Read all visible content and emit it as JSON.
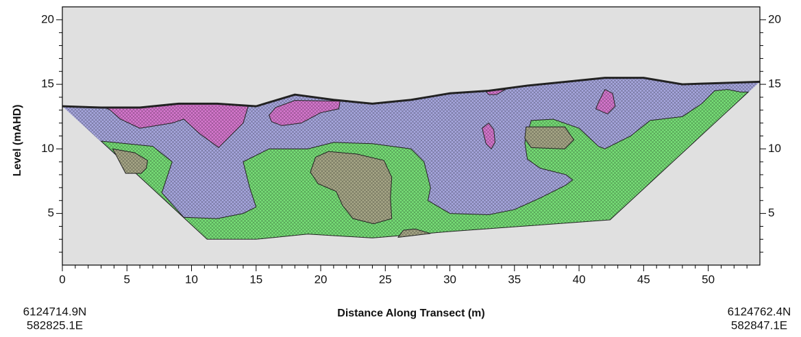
{
  "chart_data": {
    "type": "section",
    "xlabel": "Distance Along Transect (m)",
    "ylabel": "Level (mAHD)",
    "start_label": [
      "6124714.9N",
      "582825.1E"
    ],
    "end_label": [
      "6124762.4N",
      "582847.1E"
    ],
    "xlim": [
      0,
      54
    ],
    "ylim": [
      1,
      21
    ],
    "xticks": [
      0,
      5,
      10,
      15,
      20,
      25,
      30,
      35,
      40,
      45,
      50
    ],
    "yticks": [
      5,
      10,
      15,
      20
    ],
    "xminorticks": [
      1,
      2,
      3,
      4,
      6,
      7,
      8,
      9,
      11,
      12,
      13,
      14,
      16,
      17,
      18,
      19,
      21,
      22,
      23,
      24,
      26,
      27,
      28,
      29,
      31,
      32,
      33,
      34,
      36,
      37,
      38,
      39,
      41,
      42,
      43,
      44,
      46,
      47,
      48,
      49,
      51,
      52,
      53
    ],
    "yminorticks": [
      2,
      3,
      4,
      6,
      7,
      8,
      9,
      11,
      12,
      13,
      14,
      16,
      17,
      18,
      19
    ],
    "background": "#e0e0e0",
    "surface": {
      "color": "#222222",
      "x": [
        0,
        3,
        6,
        9,
        12,
        15,
        18,
        21,
        24,
        27,
        30,
        33,
        36,
        39,
        42,
        45,
        48,
        51,
        54
      ],
      "y": [
        13.3,
        13.2,
        13.2,
        13.5,
        13.5,
        13.3,
        14.2,
        13.8,
        13.5,
        13.8,
        14.3,
        14.5,
        14.9,
        15.2,
        15.5,
        15.5,
        15.0,
        15.1,
        15.2
      ]
    },
    "base": {
      "x": [
        42.4,
        30,
        24,
        19,
        15,
        11.2
      ],
      "y": [
        4.5,
        3.6,
        3.1,
        3.4,
        3.0,
        3.0
      ]
    },
    "section_color": "#a8a8e0",
    "zones": [
      {
        "color": "#78e078",
        "x": [
          3.0,
          11.2,
          15,
          19,
          24,
          30,
          42.4,
          53.1,
          52.5,
          51.5,
          50.5,
          49.5,
          48,
          45.5,
          44,
          42,
          41.5,
          40,
          38,
          36.3,
          35.8,
          36,
          37,
          39,
          39.5,
          39,
          37,
          35,
          33,
          30,
          28.3,
          28.5,
          28,
          27,
          24,
          21,
          19,
          16,
          14,
          14.5,
          15,
          14,
          12,
          9.4,
          7.7,
          8.5,
          7
        ],
        "y": [
          10.6,
          3.0,
          3.0,
          3.4,
          3.1,
          3.6,
          4.5,
          14.4,
          14.4,
          14.6,
          14.5,
          13.5,
          12.5,
          12.2,
          11,
          10,
          10.2,
          11.6,
          12.3,
          12.2,
          10.5,
          9.2,
          8.5,
          8.0,
          7.6,
          7.2,
          6.2,
          5.3,
          4.9,
          5,
          6,
          7,
          9,
          10,
          10.4,
          10.5,
          10,
          10,
          9,
          7,
          5.5,
          5,
          4.6,
          4.7,
          6.6,
          9.0,
          10.2
        ]
      },
      {
        "color": "#a8a888",
        "x": [
          3.9,
          5.6,
          6.6,
          6.5,
          6.1,
          4.9
        ],
        "y": [
          10.0,
          9.7,
          9.1,
          8.5,
          8.1,
          8.1
        ]
      },
      {
        "color": "#a8a888",
        "x": [
          19.6,
          20.6,
          22.8,
          24.9,
          25.5,
          25.4,
          25.5,
          24.1,
          22.5,
          21.7,
          21.2,
          19.8,
          19.2
        ],
        "y": [
          9.35,
          9.8,
          9.6,
          9.1,
          7.8,
          6.2,
          4.6,
          4.2,
          4.6,
          5.6,
          6.7,
          7.3,
          8.2
        ]
      },
      {
        "color": "#a8a888",
        "x": [
          35.9,
          38.9,
          39.6,
          38.9,
          36.3,
          35.8
        ],
        "y": [
          11.7,
          11.7,
          10.7,
          10.0,
          10.1,
          10.8
        ]
      },
      {
        "color": "#a8a888",
        "x": [
          26.0,
          26.4,
          27.3,
          28.5
        ],
        "y": [
          3.15,
          3.7,
          3.8,
          3.45
        ]
      },
      {
        "color": "#d878d0",
        "x": [
          3.3,
          6,
          9,
          12,
          14.4,
          14.0,
          12.9,
          12.1,
          10.6,
          9.4,
          8.5,
          6.0,
          4.5,
          3.7
        ],
        "y": [
          13.2,
          13.2,
          13.5,
          13.5,
          13.35,
          12.0,
          10.9,
          10.1,
          11.2,
          12.3,
          12.0,
          11.6,
          12.3,
          13.0
        ]
      },
      {
        "color": "#d878d0",
        "x": [
          16.0,
          16.5,
          18,
          21.5,
          21.4,
          20,
          18.5,
          17,
          16.2
        ],
        "y": [
          12.6,
          13.2,
          13.75,
          13.7,
          13.1,
          12.8,
          12.0,
          11.8,
          12.1
        ]
      },
      {
        "color": "#d878d0",
        "x": [
          32.8,
          34.3,
          33.6,
          33.0
        ],
        "y": [
          14.45,
          14.6,
          14.2,
          14.2
        ]
      },
      {
        "color": "#d878d0",
        "x": [
          32.5,
          33.0,
          33.4,
          33.5,
          33.2,
          32.8
        ],
        "y": [
          11.6,
          12.0,
          11.5,
          10.5,
          10.0,
          10.4
        ]
      },
      {
        "color": "#d878d0",
        "x": [
          41.5,
          42.0,
          42.6,
          42.8,
          42.2,
          41.3
        ],
        "y": [
          13.6,
          14.6,
          14.3,
          13.3,
          12.7,
          13.1
        ]
      }
    ]
  }
}
